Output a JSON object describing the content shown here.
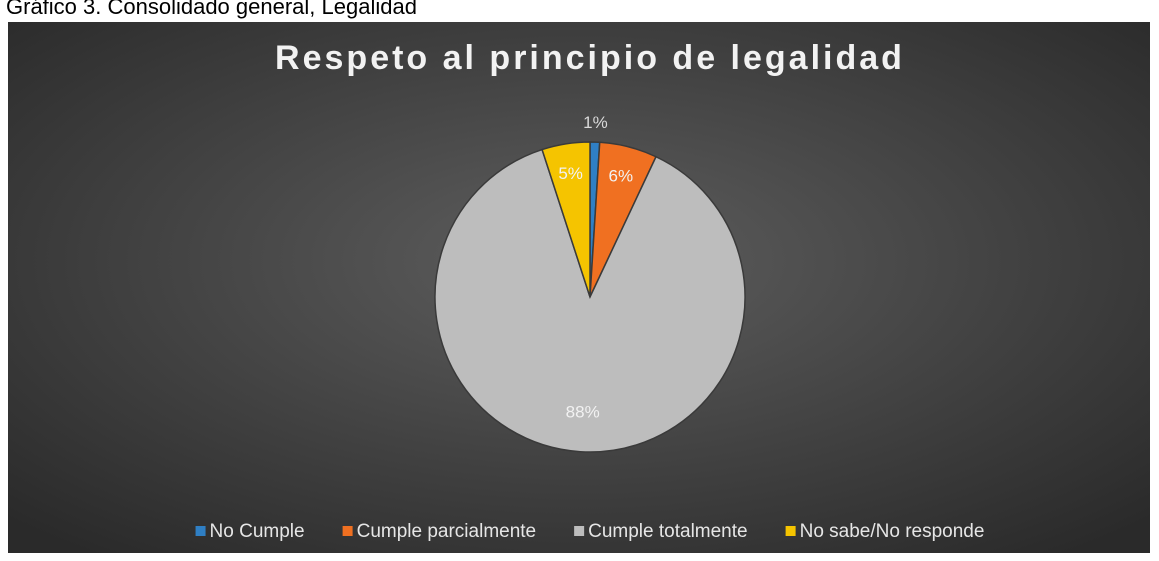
{
  "caption": "Gráfico 3. Consolidado general, Legalidad",
  "chart_data": {
    "type": "pie",
    "title": "Respeto al principio de legalidad",
    "categories": [
      "No Cumple",
      "Cumple parcialmente",
      "Cumple totalmente",
      "No sabe/No responde"
    ],
    "values": [
      1,
      6,
      88,
      5
    ],
    "value_labels": [
      "1%",
      "6%",
      "88%",
      "5%"
    ],
    "colors": [
      "#2f7fc4",
      "#f07021",
      "#bdbdbd",
      "#f5c400"
    ],
    "legend": "bottom"
  }
}
